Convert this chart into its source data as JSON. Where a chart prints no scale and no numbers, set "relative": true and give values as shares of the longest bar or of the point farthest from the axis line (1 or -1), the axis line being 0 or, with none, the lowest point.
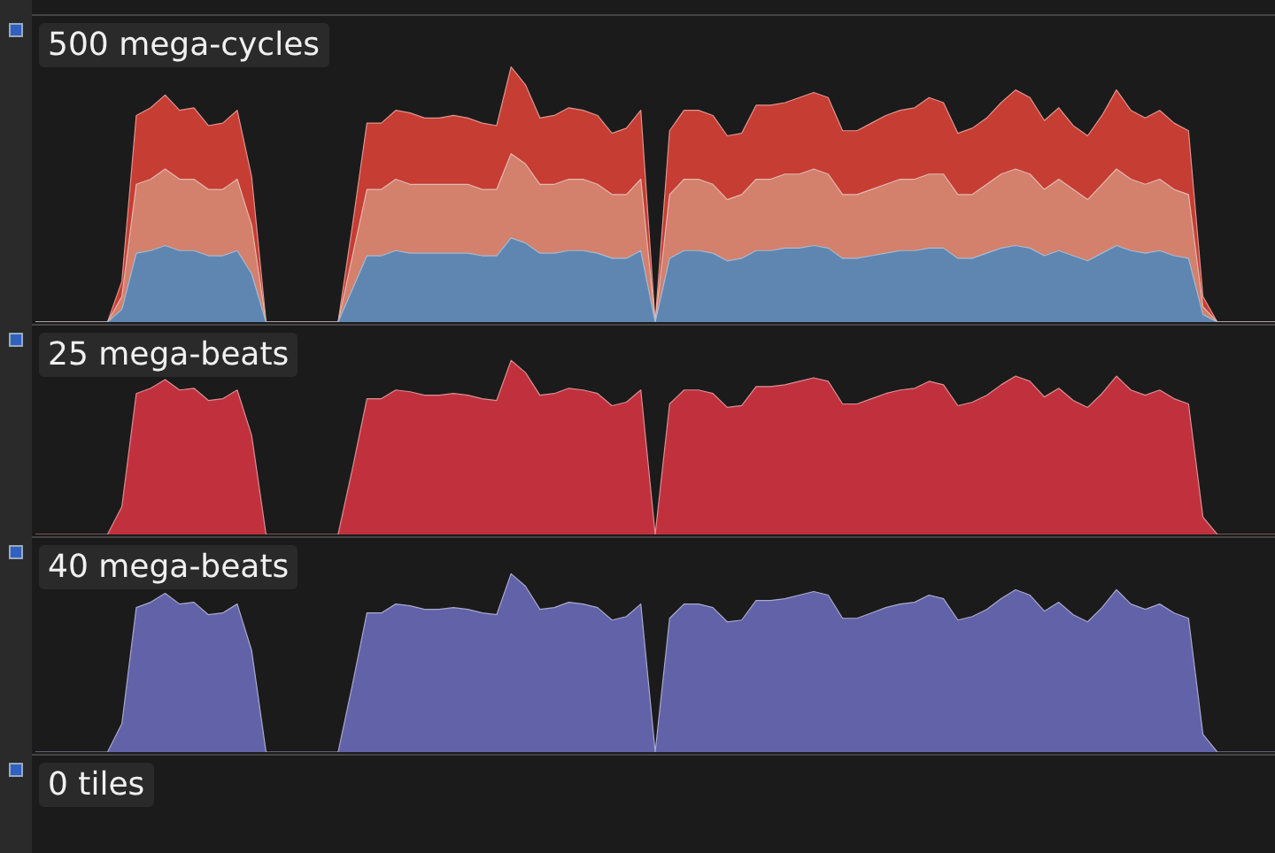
{
  "chart_data": [
    {
      "type": "area",
      "title": "500 mega-cycles",
      "relative": true,
      "stacked": true,
      "legend": false,
      "categories": [
        null,
        null,
        null,
        null,
        null,
        null,
        null,
        null,
        null,
        null,
        null,
        null,
        null,
        null,
        null,
        null,
        null,
        null,
        null,
        null,
        null,
        null,
        null,
        null,
        null,
        null,
        null,
        null,
        null,
        null,
        null,
        null,
        null,
        null,
        null,
        null,
        null,
        null,
        null,
        null,
        null,
        null,
        null,
        null,
        null,
        null,
        null,
        null,
        null,
        null,
        null,
        null,
        null,
        null,
        null,
        null,
        null,
        null,
        null,
        null,
        null,
        null,
        null,
        null,
        null,
        null,
        null,
        null,
        null,
        null,
        null,
        null,
        null,
        null,
        null,
        null,
        null,
        null,
        null,
        null,
        null,
        null,
        null,
        null,
        null,
        null,
        null
      ],
      "series": [
        {
          "color": "#5f86b0",
          "values": [
            0,
            0,
            0,
            0,
            0,
            0,
            0.05,
            0.27,
            0.28,
            0.3,
            0.28,
            0.28,
            0.26,
            0.26,
            0.28,
            0.19,
            0,
            0,
            0,
            0,
            0,
            0,
            0.13,
            0.26,
            0.26,
            0.28,
            0.27,
            0.27,
            0.27,
            0.27,
            0.27,
            0.26,
            0.26,
            0.33,
            0.31,
            0.27,
            0.27,
            0.28,
            0.28,
            0.27,
            0.25,
            0.25,
            0.28,
            0,
            0.25,
            0.28,
            0.28,
            0.27,
            0.24,
            0.25,
            0.28,
            0.28,
            0.29,
            0.29,
            0.3,
            0.29,
            0.25,
            0.25,
            0.26,
            0.27,
            0.28,
            0.28,
            0.29,
            0.29,
            0.25,
            0.25,
            0.27,
            0.29,
            0.3,
            0.29,
            0.26,
            0.28,
            0.26,
            0.24,
            0.27,
            0.3,
            0.28,
            0.27,
            0.28,
            0.26,
            0.25,
            0.03,
            0,
            0,
            0,
            0,
            0
          ]
        },
        {
          "color": "#d3806d",
          "values": [
            0,
            0,
            0,
            0,
            0,
            0,
            0.05,
            0.27,
            0.28,
            0.3,
            0.28,
            0.28,
            0.26,
            0.26,
            0.28,
            0.19,
            0,
            0,
            0,
            0,
            0,
            0,
            0.13,
            0.26,
            0.26,
            0.28,
            0.27,
            0.27,
            0.27,
            0.27,
            0.27,
            0.26,
            0.26,
            0.33,
            0.31,
            0.27,
            0.27,
            0.28,
            0.28,
            0.27,
            0.25,
            0.25,
            0.28,
            0,
            0.25,
            0.28,
            0.28,
            0.27,
            0.24,
            0.25,
            0.28,
            0.28,
            0.29,
            0.29,
            0.3,
            0.29,
            0.25,
            0.25,
            0.26,
            0.27,
            0.28,
            0.28,
            0.29,
            0.29,
            0.25,
            0.25,
            0.27,
            0.29,
            0.3,
            0.29,
            0.26,
            0.28,
            0.26,
            0.24,
            0.27,
            0.3,
            0.28,
            0.27,
            0.28,
            0.26,
            0.25,
            0.03,
            0,
            0,
            0,
            0,
            0
          ]
        },
        {
          "color": "#c63d33",
          "values": [
            0,
            0,
            0,
            0,
            0,
            0,
            0.06,
            0.27,
            0.28,
            0.29,
            0.27,
            0.28,
            0.25,
            0.26,
            0.27,
            0.19,
            0,
            0,
            0,
            0,
            0,
            0,
            0.12,
            0.26,
            0.26,
            0.27,
            0.28,
            0.26,
            0.26,
            0.27,
            0.26,
            0.26,
            0.25,
            0.34,
            0.31,
            0.26,
            0.27,
            0.28,
            0.27,
            0.27,
            0.24,
            0.26,
            0.27,
            0,
            0.25,
            0.27,
            0.27,
            0.27,
            0.25,
            0.24,
            0.29,
            0.29,
            0.28,
            0.3,
            0.3,
            0.3,
            0.25,
            0.25,
            0.26,
            0.27,
            0.27,
            0.28,
            0.3,
            0.28,
            0.24,
            0.26,
            0.26,
            0.28,
            0.31,
            0.3,
            0.27,
            0.28,
            0.25,
            0.25,
            0.27,
            0.31,
            0.27,
            0.26,
            0.27,
            0.26,
            0.25,
            0.04,
            0,
            0,
            0,
            0,
            0
          ]
        }
      ]
    },
    {
      "type": "area",
      "title": "25 mega-beats",
      "relative": true,
      "legend": false,
      "categories": [
        null,
        null,
        null,
        null,
        null,
        null,
        null,
        null,
        null,
        null,
        null,
        null,
        null,
        null,
        null,
        null,
        null,
        null,
        null,
        null,
        null,
        null,
        null,
        null,
        null,
        null,
        null,
        null,
        null,
        null,
        null,
        null,
        null,
        null,
        null,
        null,
        null,
        null,
        null,
        null,
        null,
        null,
        null,
        null,
        null,
        null,
        null,
        null,
        null,
        null,
        null,
        null,
        null,
        null,
        null,
        null,
        null,
        null,
        null,
        null,
        null,
        null,
        null,
        null,
        null,
        null,
        null,
        null,
        null,
        null,
        null,
        null,
        null,
        null,
        null,
        null,
        null,
        null,
        null,
        null,
        null,
        null,
        null,
        null,
        null,
        null,
        null
      ],
      "series": [
        {
          "color": "#c0313d",
          "values": [
            0,
            0,
            0,
            0,
            0,
            0,
            0.16,
            0.81,
            0.84,
            0.89,
            0.83,
            0.84,
            0.77,
            0.78,
            0.83,
            0.57,
            0,
            0,
            0,
            0,
            0,
            0,
            0.38,
            0.78,
            0.78,
            0.83,
            0.82,
            0.8,
            0.8,
            0.81,
            0.8,
            0.78,
            0.77,
            1.0,
            0.93,
            0.8,
            0.81,
            0.84,
            0.83,
            0.81,
            0.74,
            0.76,
            0.83,
            0,
            0.75,
            0.83,
            0.83,
            0.81,
            0.73,
            0.74,
            0.85,
            0.85,
            0.86,
            0.88,
            0.9,
            0.88,
            0.75,
            0.75,
            0.78,
            0.81,
            0.83,
            0.84,
            0.88,
            0.86,
            0.74,
            0.76,
            0.8,
            0.86,
            0.91,
            0.88,
            0.79,
            0.84,
            0.77,
            0.73,
            0.81,
            0.91,
            0.83,
            0.8,
            0.83,
            0.78,
            0.75,
            0.1,
            0,
            0,
            0,
            0,
            0
          ]
        }
      ]
    },
    {
      "type": "area",
      "title": "40 mega-beats",
      "relative": true,
      "legend": false,
      "categories": [
        null,
        null,
        null,
        null,
        null,
        null,
        null,
        null,
        null,
        null,
        null,
        null,
        null,
        null,
        null,
        null,
        null,
        null,
        null,
        null,
        null,
        null,
        null,
        null,
        null,
        null,
        null,
        null,
        null,
        null,
        null,
        null,
        null,
        null,
        null,
        null,
        null,
        null,
        null,
        null,
        null,
        null,
        null,
        null,
        null,
        null,
        null,
        null,
        null,
        null,
        null,
        null,
        null,
        null,
        null,
        null,
        null,
        null,
        null,
        null,
        null,
        null,
        null,
        null,
        null,
        null,
        null,
        null,
        null,
        null,
        null,
        null,
        null,
        null,
        null,
        null,
        null,
        null,
        null,
        null,
        null,
        null,
        null,
        null,
        null,
        null,
        null
      ],
      "series": [
        {
          "color": "#6262a8",
          "values": [
            0,
            0,
            0,
            0,
            0,
            0,
            0.16,
            0.81,
            0.84,
            0.89,
            0.83,
            0.84,
            0.77,
            0.78,
            0.83,
            0.57,
            0,
            0,
            0,
            0,
            0,
            0,
            0.38,
            0.78,
            0.78,
            0.83,
            0.82,
            0.8,
            0.8,
            0.81,
            0.8,
            0.78,
            0.77,
            1.0,
            0.93,
            0.8,
            0.81,
            0.84,
            0.83,
            0.81,
            0.74,
            0.76,
            0.83,
            0,
            0.75,
            0.83,
            0.83,
            0.81,
            0.73,
            0.74,
            0.85,
            0.85,
            0.86,
            0.88,
            0.9,
            0.88,
            0.75,
            0.75,
            0.78,
            0.81,
            0.83,
            0.84,
            0.88,
            0.86,
            0.74,
            0.76,
            0.8,
            0.86,
            0.91,
            0.88,
            0.79,
            0.84,
            0.77,
            0.73,
            0.81,
            0.91,
            0.83,
            0.8,
            0.83,
            0.78,
            0.75,
            0.1,
            0,
            0,
            0,
            0,
            0
          ]
        }
      ]
    },
    {
      "type": "other",
      "title": "0 tiles"
    }
  ]
}
